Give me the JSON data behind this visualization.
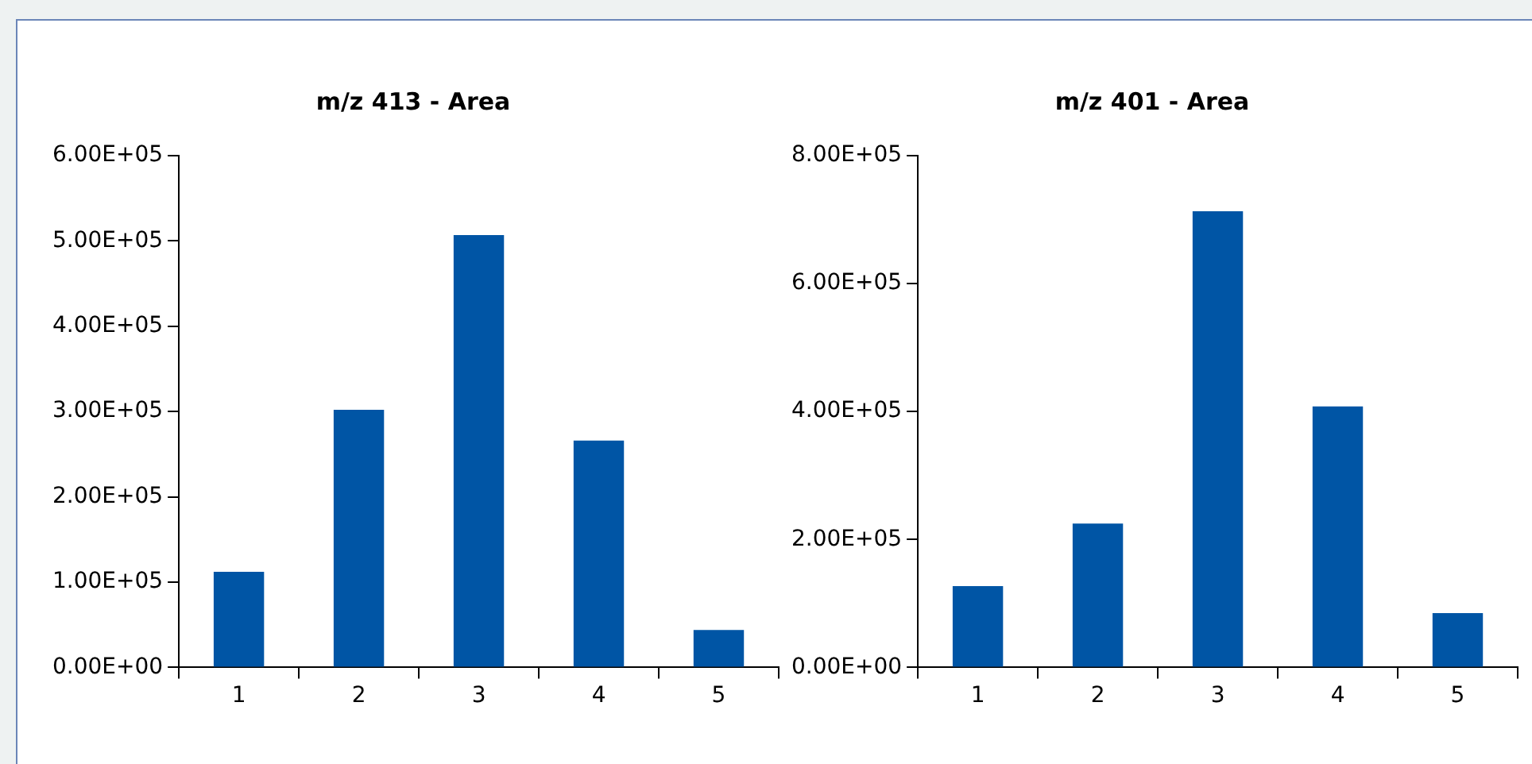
{
  "chart_data": [
    {
      "type": "bar",
      "title": "m/z 413 - Area",
      "categories": [
        "1",
        "2",
        "3",
        "4",
        "5"
      ],
      "values": [
        112000,
        302000,
        507000,
        266000,
        44000
      ],
      "color": "#0055a5",
      "ylim": [
        0,
        600000
      ],
      "yticks": [
        {
          "value": 0,
          "label": "0.00E+00"
        },
        {
          "value": 100000,
          "label": "1.00E+05"
        },
        {
          "value": 200000,
          "label": "2.00E+05"
        },
        {
          "value": 300000,
          "label": "3.00E+05"
        },
        {
          "value": 400000,
          "label": "4.00E+05"
        },
        {
          "value": 500000,
          "label": "5.00E+05"
        },
        {
          "value": 600000,
          "label": "6.00E+05"
        }
      ],
      "grid": false,
      "legend": false
    },
    {
      "type": "bar",
      "title": "m/z 401 - Area",
      "categories": [
        "1",
        "2",
        "3",
        "4",
        "5"
      ],
      "values": [
        127000,
        225000,
        713000,
        408000,
        85000
      ],
      "color": "#0055a5",
      "ylim": [
        0,
        800000
      ],
      "yticks": [
        {
          "value": 0,
          "label": "0.00E+00"
        },
        {
          "value": 200000,
          "label": "2.00E+05"
        },
        {
          "value": 400000,
          "label": "4.00E+05"
        },
        {
          "value": 600000,
          "label": "6.00E+05"
        },
        {
          "value": 800000,
          "label": "8.00E+05"
        }
      ],
      "grid": false,
      "legend": false
    }
  ]
}
